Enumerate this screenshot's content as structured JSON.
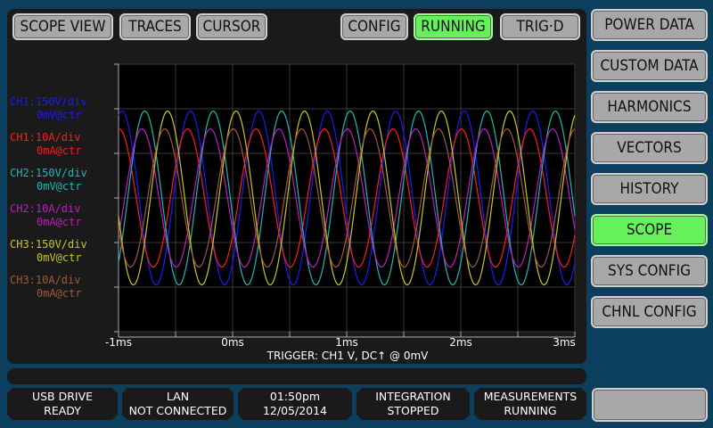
{
  "top_tabs": [
    {
      "label": "SCOPE VIEW"
    },
    {
      "label": "TRACES"
    },
    {
      "label": "CURSOR"
    }
  ],
  "top_right": [
    {
      "label": "CONFIG",
      "active": false
    },
    {
      "label": "RUNNING",
      "active": true
    },
    {
      "label": "TRIG·D",
      "active": false
    }
  ],
  "side_menu": [
    {
      "label": "POWER DATA"
    },
    {
      "label": "CUSTOM DATA"
    },
    {
      "label": "HARMONICS"
    },
    {
      "label": "VECTORS"
    },
    {
      "label": "HISTORY"
    },
    {
      "label": "SCOPE",
      "active": true
    },
    {
      "label": "SYS CONFIG"
    },
    {
      "label": "CHNL CONFIG"
    }
  ],
  "channels": [
    {
      "scale": "CH1:150V/div",
      "offset": "0mV@ctr",
      "color": "#1a1aff"
    },
    {
      "scale": "CH1:10A/div",
      "offset": "0mA@ctr",
      "color": "#ff1a1a"
    },
    {
      "scale": "CH2:150V/div",
      "offset": "0mV@ctr",
      "color": "#1ab8b8"
    },
    {
      "scale": "CH2:10A/div",
      "offset": "0mA@ctr",
      "color": "#c01ac0"
    },
    {
      "scale": "CH3:150V/div",
      "offset": "0mV@ctr",
      "color": "#c8c81a"
    },
    {
      "scale": "CH3:10A/div",
      "offset": "0mA@ctr",
      "color": "#a0583a"
    }
  ],
  "trigger": "TRIGGER: CH1 V, DC↑ @ 0mV",
  "status": [
    {
      "line1": "USB DRIVE",
      "line2": "READY"
    },
    {
      "line1": "LAN",
      "line2": "NOT CONNECTED"
    },
    {
      "line1": "01:50pm",
      "line2": "12/05/2014"
    },
    {
      "line1": "INTEGRATION",
      "line2": "STOPPED"
    },
    {
      "line1": "MEASUREMENTS",
      "line2": "RUNNING"
    }
  ],
  "chart_data": {
    "type": "line",
    "xlim": [
      -1,
      3
    ],
    "x_unit": "ms",
    "x_ticks": [
      "-1ms",
      "0ms",
      "1ms",
      "2ms",
      "3ms"
    ],
    "y_divisions": 6,
    "grid": true,
    "series": [
      {
        "channel": "CH1 V",
        "color": "#1a1aff",
        "amplitude_div": 1.95,
        "period_ms": 0.6,
        "phase_deg": 0
      },
      {
        "channel": "CH1 A",
        "color": "#ff1a1a",
        "amplitude_div": 1.55,
        "period_ms": 0.6,
        "phase_deg": -15
      },
      {
        "channel": "CH2 V",
        "color": "#1ab8b8",
        "amplitude_div": 1.95,
        "period_ms": 0.6,
        "phase_deg": 120
      },
      {
        "channel": "CH2 A",
        "color": "#c01ac0",
        "amplitude_div": 1.55,
        "period_ms": 0.6,
        "phase_deg": 105
      },
      {
        "channel": "CH3 V",
        "color": "#c8c81a",
        "amplitude_div": 1.95,
        "period_ms": 0.6,
        "phase_deg": -120
      },
      {
        "channel": "CH3 A",
        "color": "#a0583a",
        "amplitude_div": 1.55,
        "period_ms": 0.6,
        "phase_deg": -135
      }
    ]
  }
}
